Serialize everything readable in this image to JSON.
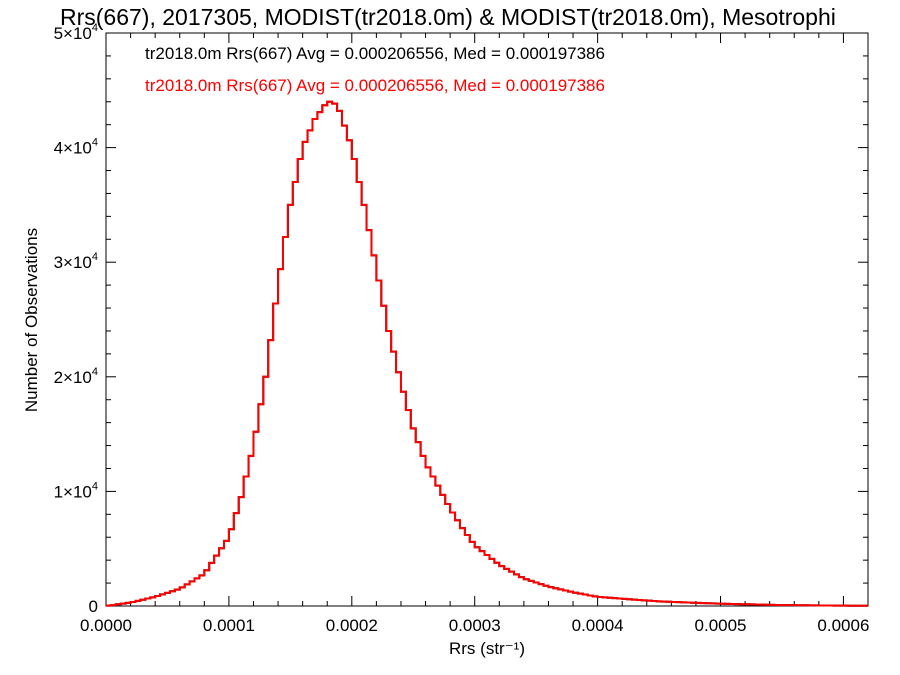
{
  "chart_data": {
    "type": "line",
    "title": "Rrs(667), 2017305, MODIST(tr2018.0m) & MODIST(tr2018.0m), Mesotrophi",
    "xlabel": "Rrs (str⁻¹)",
    "ylabel": "Number of Observations",
    "xlim": [
      0.0,
      0.00062
    ],
    "ylim": [
      0,
      50000
    ],
    "x_tick_labels": [
      "0.0000",
      "0.0001",
      "0.0002",
      "0.0003",
      "0.0004",
      "0.0005",
      "0.0006"
    ],
    "x_ticks": [
      0.0,
      0.0001,
      0.0002,
      0.0003,
      0.0004,
      0.0005,
      0.0006
    ],
    "y_ticks": [
      0,
      10000,
      20000,
      30000,
      40000,
      50000
    ],
    "y_tick_labels": [
      {
        "mantissa": "0",
        "exp": ""
      },
      {
        "mantissa": "1×10",
        "exp": "4"
      },
      {
        "mantissa": "2×10",
        "exp": "4"
      },
      {
        "mantissa": "3×10",
        "exp": "4"
      },
      {
        "mantissa": "4×10",
        "exp": "4"
      },
      {
        "mantissa": "5×10",
        "exp": "4"
      }
    ],
    "grid": false,
    "legend_position": "top-left",
    "step_histogram": true,
    "bin_width": 4e-06,
    "series": [
      {
        "name": "tr2018.0m Rrs(667)",
        "label": "tr2018.0m Rrs(667) Avg = 0.000206556, Med = 0.000197386",
        "color": "#000000",
        "x": [
          0.0,
          2e-05,
          4e-05,
          6e-05,
          8e-05,
          0.0001,
          0.00011,
          0.00012,
          0.00013,
          0.00014,
          0.00015,
          0.00016,
          0.00017,
          0.00018,
          0.000185,
          0.00019,
          0.0002,
          0.00021,
          0.00022,
          0.00023,
          0.00024,
          0.00025,
          0.00026,
          0.00027,
          0.00028,
          0.00029,
          0.0003,
          0.00032,
          0.00034,
          0.00036,
          0.00038,
          0.0004,
          0.00045,
          0.0005,
          0.00055,
          0.0006,
          0.00062
        ],
        "y": [
          0,
          300,
          800,
          1500,
          2800,
          6000,
          9500,
          14000,
          20000,
          28000,
          35000,
          40000,
          42500,
          44000,
          44000,
          43200,
          40000,
          35000,
          29500,
          24000,
          19500,
          15500,
          12500,
          10500,
          8500,
          6800,
          5300,
          3600,
          2400,
          1700,
          1200,
          800,
          400,
          200,
          80,
          30,
          20
        ]
      },
      {
        "name": "tr2018.0m Rrs(667)",
        "label": "tr2018.0m Rrs(667) Avg = 0.000206556, Med = 0.000197386",
        "color": "#ff0000",
        "x": [
          0.0,
          2e-05,
          4e-05,
          6e-05,
          8e-05,
          0.0001,
          0.00011,
          0.00012,
          0.00013,
          0.00014,
          0.00015,
          0.00016,
          0.00017,
          0.00018,
          0.000185,
          0.00019,
          0.0002,
          0.00021,
          0.00022,
          0.00023,
          0.00024,
          0.00025,
          0.00026,
          0.00027,
          0.00028,
          0.00029,
          0.0003,
          0.00032,
          0.00034,
          0.00036,
          0.00038,
          0.0004,
          0.00045,
          0.0005,
          0.00055,
          0.0006,
          0.00062
        ],
        "y": [
          0,
          300,
          800,
          1500,
          2800,
          6000,
          9500,
          14000,
          20000,
          28000,
          35000,
          40000,
          42500,
          44000,
          44000,
          43200,
          40000,
          35000,
          29500,
          24000,
          19500,
          15500,
          12500,
          10500,
          8500,
          6800,
          5300,
          3600,
          2400,
          1700,
          1200,
          800,
          400,
          200,
          80,
          30,
          20
        ]
      }
    ]
  }
}
